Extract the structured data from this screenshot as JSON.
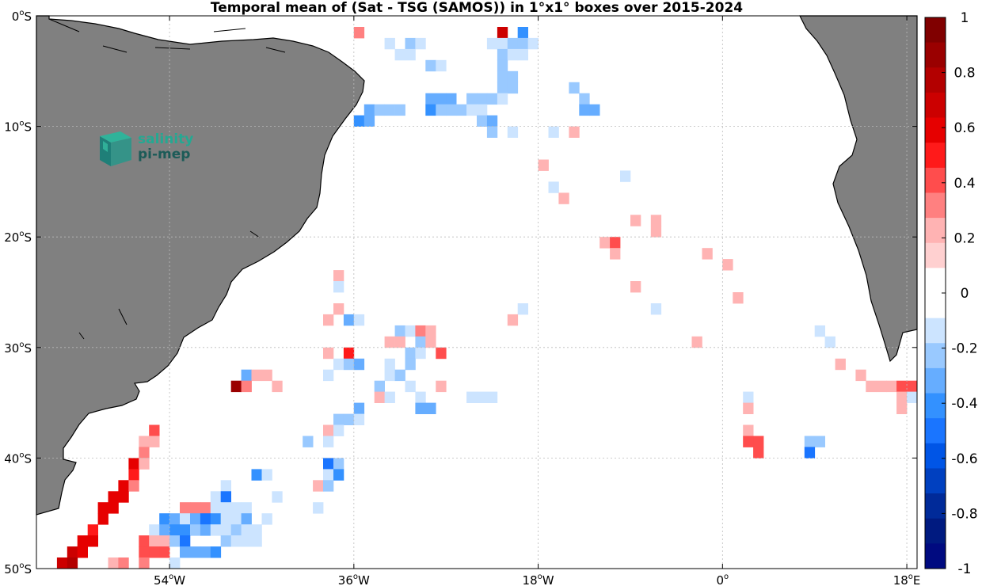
{
  "title": "Temporal mean of (Sat - TSG (SAMOS)) in 1°x1° boxes over 2015-2024",
  "map": {
    "lon_range": [
      -67,
      19
    ],
    "lat_range": [
      -50,
      0
    ],
    "land_color": "#808080",
    "ocean_color": "#ffffff",
    "grid": true
  },
  "lat_ticks": [
    {
      "value": 0,
      "label_num": "0",
      "label_dir": "S"
    },
    {
      "value": -10,
      "label_num": "10",
      "label_dir": "S"
    },
    {
      "value": -20,
      "label_num": "20",
      "label_dir": "S"
    },
    {
      "value": -30,
      "label_num": "30",
      "label_dir": "S"
    },
    {
      "value": -40,
      "label_num": "40",
      "label_dir": "S"
    },
    {
      "value": -50,
      "label_num": "50",
      "label_dir": "S"
    }
  ],
  "lon_ticks": [
    {
      "value": -54,
      "label_num": "54",
      "label_dir": "W"
    },
    {
      "value": -36,
      "label_num": "36",
      "label_dir": "W"
    },
    {
      "value": -18,
      "label_num": "18",
      "label_dir": "W"
    },
    {
      "value": 0,
      "label_num": "0",
      "label_dir": ""
    },
    {
      "value": 18,
      "label_num": "18",
      "label_dir": "E"
    }
  ],
  "colorbar": {
    "range": [
      -1,
      1
    ],
    "ticks": [
      "1",
      "0.8",
      "0.6",
      "0.4",
      "0.2",
      "0",
      "-0.2",
      "-0.4",
      "-0.6",
      "-0.8",
      "-1"
    ],
    "colors": [
      "#800000",
      "#9a0000",
      "#b30000",
      "#cc0000",
      "#e60000",
      "#ff1a1a",
      "#ff4d4d",
      "#ff8080",
      "#ffb3b3",
      "#ffd0d0",
      "#ffffff",
      "#ffffff",
      "#cce4ff",
      "#99c9ff",
      "#66adff",
      "#3391ff",
      "#1a75ff",
      "#0055e6",
      "#0040c0",
      "#002a99",
      "#001a80",
      "#000a80"
    ]
  },
  "logo": {
    "line1": "salinity",
    "line2": "pi-mep"
  },
  "cells": [
    [
      -36,
      -1,
      0.3
    ],
    [
      -22,
      -1,
      0.7
    ],
    [
      -20,
      -1,
      -0.4
    ],
    [
      -33,
      -2,
      -0.1
    ],
    [
      -31,
      -2,
      -0.2
    ],
    [
      -30,
      -2,
      -0.1
    ],
    [
      -23,
      -2,
      -0.1
    ],
    [
      -22,
      -2,
      -0.1
    ],
    [
      -21,
      -2,
      -0.2
    ],
    [
      -20,
      -2,
      -0.2
    ],
    [
      -19,
      -2,
      -0.1
    ],
    [
      -32,
      -3,
      -0.1
    ],
    [
      -31,
      -3,
      -0.1
    ],
    [
      -22,
      -3,
      -0.2
    ],
    [
      -21,
      -3,
      -0.1
    ],
    [
      -20,
      -3,
      -0.1
    ],
    [
      -29,
      -4,
      -0.2
    ],
    [
      -28,
      -4,
      -0.1
    ],
    [
      -22,
      -4,
      -0.2
    ],
    [
      -22,
      -5,
      -0.2
    ],
    [
      -21,
      -5,
      -0.2
    ],
    [
      -22,
      -6,
      -0.2
    ],
    [
      -21,
      -6,
      -0.2
    ],
    [
      -15,
      -6,
      -0.2
    ],
    [
      -29,
      -7,
      -0.3
    ],
    [
      -28,
      -7,
      -0.3
    ],
    [
      -27,
      -7,
      -0.3
    ],
    [
      -25,
      -7,
      -0.2
    ],
    [
      -24,
      -7,
      -0.2
    ],
    [
      -23,
      -7,
      -0.2
    ],
    [
      -22,
      -7,
      -0.1
    ],
    [
      -14,
      -7,
      -0.2
    ],
    [
      -35,
      -8,
      -0.3
    ],
    [
      -34,
      -8,
      -0.2
    ],
    [
      -33,
      -8,
      -0.2
    ],
    [
      -32,
      -8,
      -0.2
    ],
    [
      -29,
      -8,
      -0.4
    ],
    [
      -28,
      -8,
      -0.2
    ],
    [
      -27,
      -8,
      -0.2
    ],
    [
      -26,
      -8,
      -0.2
    ],
    [
      -25,
      -8,
      -0.1
    ],
    [
      -24,
      -8,
      -0.1
    ],
    [
      -14,
      -8,
      -0.3
    ],
    [
      -13,
      -8,
      -0.3
    ],
    [
      -36,
      -9,
      -0.4
    ],
    [
      -35,
      -9,
      -0.3
    ],
    [
      -24,
      -9,
      -0.2
    ],
    [
      -23,
      -9,
      -0.3
    ],
    [
      -23,
      -10,
      -0.2
    ],
    [
      -21,
      -10,
      -0.1
    ],
    [
      -17,
      -10,
      -0.1
    ],
    [
      -15,
      -10,
      0.2
    ],
    [
      -18,
      -13,
      0.2
    ],
    [
      -10,
      -14,
      -0.1
    ],
    [
      -17,
      -15,
      -0.1
    ],
    [
      -16,
      -16,
      0.2
    ],
    [
      -9,
      -18,
      0.2
    ],
    [
      -7,
      -18,
      0.2
    ],
    [
      -7,
      -19,
      0.2
    ],
    [
      -12,
      -20,
      0.2
    ],
    [
      -11,
      -20,
      0.4
    ],
    [
      -11,
      -21,
      0.2
    ],
    [
      -2,
      -21,
      0.2
    ],
    [
      0,
      -22,
      0.2
    ],
    [
      -38,
      -23,
      0.2
    ],
    [
      -38,
      -24,
      -0.1
    ],
    [
      -9,
      -24,
      0.2
    ],
    [
      1,
      -25,
      0.2
    ],
    [
      -38,
      -26,
      0.2
    ],
    [
      -20,
      -26,
      -0.1
    ],
    [
      -7,
      -26,
      -0.1
    ],
    [
      -39,
      -27,
      0.2
    ],
    [
      -37,
      -27,
      -0.3
    ],
    [
      -36,
      -27,
      -0.1
    ],
    [
      -21,
      -27,
      0.2
    ],
    [
      -32,
      -28,
      -0.2
    ],
    [
      -31,
      -28,
      -0.1
    ],
    [
      -30,
      -28,
      0.3
    ],
    [
      -29,
      -28,
      0.2
    ],
    [
      9,
      -28,
      -0.1
    ],
    [
      -33,
      -29,
      0.2
    ],
    [
      -32,
      -29,
      0.2
    ],
    [
      -30,
      -29,
      -0.2
    ],
    [
      -29,
      -29,
      0.2
    ],
    [
      -3,
      -29,
      0.2
    ],
    [
      10,
      -29,
      -0.1
    ],
    [
      -39,
      -30,
      0.2
    ],
    [
      -37,
      -30,
      0.5
    ],
    [
      -31,
      -30,
      -0.2
    ],
    [
      -30,
      -30,
      -0.1
    ],
    [
      -28,
      -30,
      0.4
    ],
    [
      -38,
      -31,
      -0.1
    ],
    [
      -37,
      -31,
      -0.2
    ],
    [
      -36,
      -31,
      -0.3
    ],
    [
      -33,
      -31,
      -0.1
    ],
    [
      -31,
      -31,
      -0.2
    ],
    [
      11,
      -31,
      0.2
    ],
    [
      -47,
      -32,
      -0.3
    ],
    [
      -46,
      -32,
      0.2
    ],
    [
      -45,
      -32,
      0.2
    ],
    [
      -39,
      -32,
      -0.1
    ],
    [
      -33,
      -32,
      -0.1
    ],
    [
      -32,
      -32,
      -0.2
    ],
    [
      13,
      -32,
      0.2
    ],
    [
      -48,
      -33,
      0.9
    ],
    [
      -47,
      -33,
      0.3
    ],
    [
      -44,
      -33,
      0.2
    ],
    [
      -34,
      -33,
      -0.2
    ],
    [
      -31,
      -33,
      -0.1
    ],
    [
      -28,
      -33,
      0.2
    ],
    [
      14,
      -33,
      0.2
    ],
    [
      15,
      -33,
      0.2
    ],
    [
      16,
      -33,
      0.2
    ],
    [
      17,
      -33,
      0.4
    ],
    [
      18,
      -33,
      0.4
    ],
    [
      -34,
      -34,
      0.2
    ],
    [
      -33,
      -34,
      -0.1
    ],
    [
      -30,
      -34,
      -0.1
    ],
    [
      -25,
      -34,
      -0.1
    ],
    [
      -24,
      -34,
      -0.1
    ],
    [
      -23,
      -34,
      -0.1
    ],
    [
      2,
      -34,
      -0.1
    ],
    [
      17,
      -34,
      0.2
    ],
    [
      18,
      -34,
      -0.1
    ],
    [
      -36,
      -35,
      -0.3
    ],
    [
      -30,
      -35,
      -0.3
    ],
    [
      -29,
      -35,
      -0.3
    ],
    [
      2,
      -35,
      0.2
    ],
    [
      17,
      -35,
      0.2
    ],
    [
      -38,
      -36,
      -0.2
    ],
    [
      -37,
      -36,
      -0.2
    ],
    [
      -36,
      -36,
      -0.1
    ],
    [
      -56,
      -37,
      0.4
    ],
    [
      -39,
      -37,
      0.2
    ],
    [
      -38,
      -37,
      -0.1
    ],
    [
      2,
      -37,
      0.2
    ],
    [
      -57,
      -38,
      0.2
    ],
    [
      -56,
      -38,
      0.2
    ],
    [
      -41,
      -38,
      -0.2
    ],
    [
      -39,
      -38,
      -0.1
    ],
    [
      2,
      -38,
      0.4
    ],
    [
      3,
      -38,
      0.4
    ],
    [
      8,
      -38,
      -0.2
    ],
    [
      9,
      -38,
      -0.2
    ],
    [
      -57,
      -39,
      0.3
    ],
    [
      3,
      -39,
      0.4
    ],
    [
      8,
      -39,
      -0.5
    ],
    [
      -58,
      -40,
      0.6
    ],
    [
      -57,
      -40,
      0.2
    ],
    [
      -39,
      -40,
      -0.5
    ],
    [
      -38,
      -40,
      -0.2
    ],
    [
      -58,
      -41,
      0.5
    ],
    [
      -46,
      -41,
      -0.4
    ],
    [
      -45,
      -41,
      -0.1
    ],
    [
      -39,
      -41,
      -0.1
    ],
    [
      -38,
      -41,
      -0.4
    ],
    [
      -59,
      -42,
      0.6
    ],
    [
      -58,
      -42,
      0.3
    ],
    [
      -49,
      -42,
      -0.1
    ],
    [
      -40,
      -42,
      0.2
    ],
    [
      -39,
      -42,
      -0.2
    ],
    [
      -60,
      -43,
      0.6
    ],
    [
      -59,
      -43,
      0.6
    ],
    [
      -50,
      -43,
      -0.1
    ],
    [
      -49,
      -43,
      -0.5
    ],
    [
      -44,
      -43,
      -0.1
    ],
    [
      -61,
      -44,
      0.6
    ],
    [
      -60,
      -44,
      0.6
    ],
    [
      -53,
      -44,
      0.3
    ],
    [
      -52,
      -44,
      0.3
    ],
    [
      -51,
      -44,
      0.3
    ],
    [
      -50,
      -44,
      -0.1
    ],
    [
      -49,
      -44,
      -0.1
    ],
    [
      -48,
      -44,
      -0.1
    ],
    [
      -47,
      -44,
      -0.1
    ],
    [
      -40,
      -44,
      -0.1
    ],
    [
      -61,
      -45,
      0.6
    ],
    [
      -55,
      -45,
      -0.4
    ],
    [
      -54,
      -45,
      -0.3
    ],
    [
      -53,
      -45,
      -0.1
    ],
    [
      -52,
      -45,
      -0.3
    ],
    [
      -51,
      -45,
      -0.5
    ],
    [
      -50,
      -45,
      -0.4
    ],
    [
      -49,
      -45,
      -0.1
    ],
    [
      -48,
      -45,
      -0.1
    ],
    [
      -47,
      -45,
      -0.3
    ],
    [
      -45,
      -45,
      -0.1
    ],
    [
      -62,
      -46,
      0.5
    ],
    [
      -56,
      -46,
      -0.1
    ],
    [
      -55,
      -46,
      -0.3
    ],
    [
      -54,
      -46,
      -0.4
    ],
    [
      -53,
      -46,
      -0.4
    ],
    [
      -52,
      -46,
      -0.2
    ],
    [
      -51,
      -46,
      -0.3
    ],
    [
      -50,
      -46,
      -0.1
    ],
    [
      -49,
      -46,
      -0.1
    ],
    [
      -48,
      -46,
      -0.2
    ],
    [
      -47,
      -46,
      -0.1
    ],
    [
      -46,
      -46,
      -0.1
    ],
    [
      -63,
      -47,
      0.6
    ],
    [
      -62,
      -47,
      0.6
    ],
    [
      -57,
      -47,
      0.4
    ],
    [
      -56,
      -47,
      0.2
    ],
    [
      -55,
      -47,
      0.2
    ],
    [
      -54,
      -47,
      -0.2
    ],
    [
      -53,
      -47,
      -0.5
    ],
    [
      -49,
      -47,
      -0.2
    ],
    [
      -48,
      -47,
      -0.1
    ],
    [
      -47,
      -47,
      -0.1
    ],
    [
      -46,
      -47,
      -0.1
    ],
    [
      -64,
      -48,
      0.7
    ],
    [
      -63,
      -48,
      0.6
    ],
    [
      -57,
      -48,
      0.4
    ],
    [
      -56,
      -48,
      0.4
    ],
    [
      -55,
      -48,
      0.4
    ],
    [
      -53,
      -48,
      -0.3
    ],
    [
      -52,
      -48,
      -0.3
    ],
    [
      -51,
      -48,
      -0.3
    ],
    [
      -50,
      -48,
      -0.4
    ],
    [
      -65,
      -49,
      0.7
    ],
    [
      -64,
      -49,
      0.8
    ],
    [
      -60,
      -49,
      0.2
    ],
    [
      -59,
      -49,
      0.3
    ],
    [
      -57,
      -49,
      0.3
    ],
    [
      -54,
      -49,
      -0.1
    ]
  ]
}
